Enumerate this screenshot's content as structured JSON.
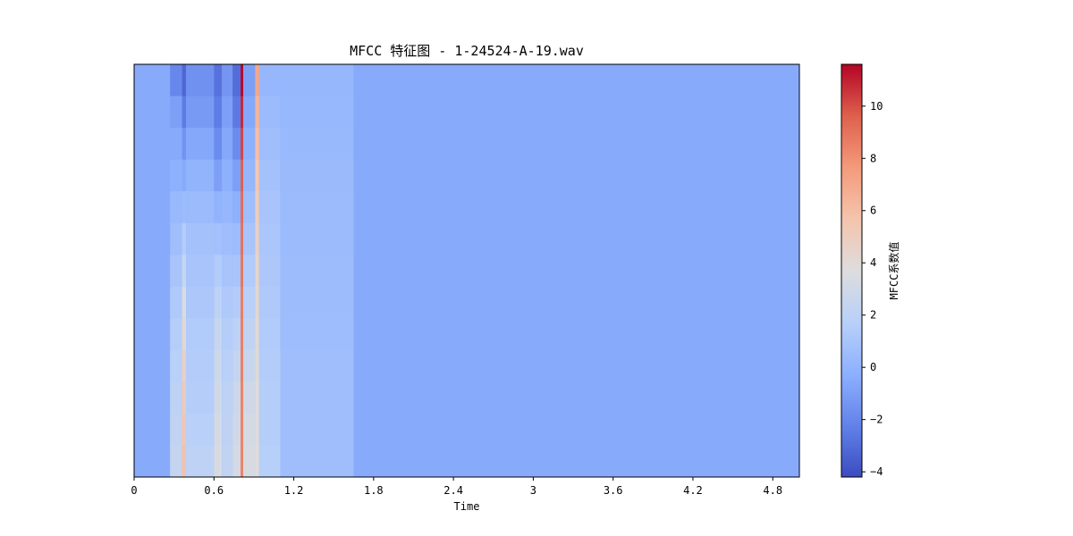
{
  "chart_data": {
    "type": "heatmap",
    "title": "MFCC 特征图 - 1-24524-A-19.wav",
    "xlabel": "Time",
    "ylabel": "",
    "xlim": [
      0,
      5.0
    ],
    "x_ticks": [
      0,
      0.6,
      1.2,
      1.8,
      2.4,
      3,
      3.6,
      4.2,
      4.8
    ],
    "x_tick_labels": [
      "0",
      "0.6",
      "1.2",
      "1.8",
      "2.4",
      "3",
      "3.6",
      "4.2",
      "4.8"
    ],
    "n_coefficients": 13,
    "colormap": "coolwarm",
    "colorbar": {
      "label": "MFCC系数值",
      "range": [
        -4.2,
        11.6
      ],
      "ticks": [
        -4,
        -2,
        0,
        2,
        4,
        6,
        8,
        10
      ],
      "tick_labels": [
        "−4",
        "−2",
        "0",
        "2",
        "4",
        "6",
        "8",
        "10"
      ]
    },
    "background_value": -0.5,
    "events": [
      {
        "t_start": 0.27,
        "t_end": 0.36,
        "values_top_to_bottom": [
          -2.0,
          -1.0,
          -0.5,
          -0.2,
          0.3,
          0.6,
          1.0,
          1.3,
          1.6,
          1.8,
          2.0,
          2.2,
          2.4
        ]
      },
      {
        "t_start": 0.36,
        "t_end": 0.39,
        "values_top_to_bottom": [
          -3.2,
          -2.5,
          -1.5,
          -0.5,
          0.5,
          1.5,
          2.5,
          3.5,
          4.2,
          4.8,
          5.2,
          5.6,
          5.8
        ]
      },
      {
        "t_start": 0.39,
        "t_end": 0.6,
        "values_top_to_bottom": [
          -1.6,
          -1.2,
          -0.6,
          0.0,
          0.4,
          0.8,
          1.0,
          1.2,
          1.4,
          1.5,
          1.6,
          1.8,
          2.0
        ]
      },
      {
        "t_start": 0.6,
        "t_end": 0.66,
        "values_top_to_bottom": [
          -2.8,
          -2.4,
          -1.8,
          -1.0,
          0.0,
          0.8,
          1.5,
          2.0,
          2.5,
          2.8,
          3.0,
          3.2,
          3.4
        ]
      },
      {
        "t_start": 0.66,
        "t_end": 0.74,
        "values_top_to_bottom": [
          -1.4,
          -1.0,
          -0.6,
          -0.2,
          0.2,
          0.6,
          1.0,
          1.3,
          1.6,
          1.8,
          2.0,
          2.1,
          2.2
        ]
      },
      {
        "t_start": 0.74,
        "t_end": 0.8,
        "values_top_to_bottom": [
          -3.0,
          -2.5,
          -1.8,
          -1.0,
          -0.2,
          0.5,
          1.0,
          1.5,
          2.0,
          2.4,
          2.8,
          3.0,
          3.2
        ]
      },
      {
        "t_start": 0.8,
        "t_end": 0.82,
        "values_top_to_bottom": [
          11.5,
          10.8,
          10.2,
          9.6,
          9.2,
          9.0,
          8.8,
          8.6,
          8.5,
          8.5,
          8.4,
          8.4,
          8.4
        ]
      },
      {
        "t_start": 0.82,
        "t_end": 0.91,
        "values_top_to_bottom": [
          -1.0,
          -0.6,
          -0.2,
          0.2,
          0.6,
          1.0,
          1.4,
          1.8,
          2.2,
          2.6,
          3.0,
          3.2,
          3.4
        ]
      },
      {
        "t_start": 0.91,
        "t_end": 0.94,
        "values_top_to_bottom": [
          7.0,
          6.4,
          5.9,
          5.4,
          5.0,
          4.7,
          4.4,
          4.2,
          4.0,
          3.9,
          3.8,
          3.8,
          3.8
        ]
      },
      {
        "t_start": 0.94,
        "t_end": 1.1,
        "values_top_to_bottom": [
          0.2,
          0.4,
          0.6,
          0.8,
          1.0,
          1.1,
          1.2,
          1.3,
          1.4,
          1.5,
          1.6,
          1.6,
          1.7
        ]
      },
      {
        "t_start": 1.1,
        "t_end": 1.65,
        "values_top_to_bottom": [
          0.2,
          0.25,
          0.3,
          0.35,
          0.4,
          0.45,
          0.5,
          0.5,
          0.55,
          0.6,
          0.6,
          0.6,
          0.6
        ]
      }
    ]
  }
}
